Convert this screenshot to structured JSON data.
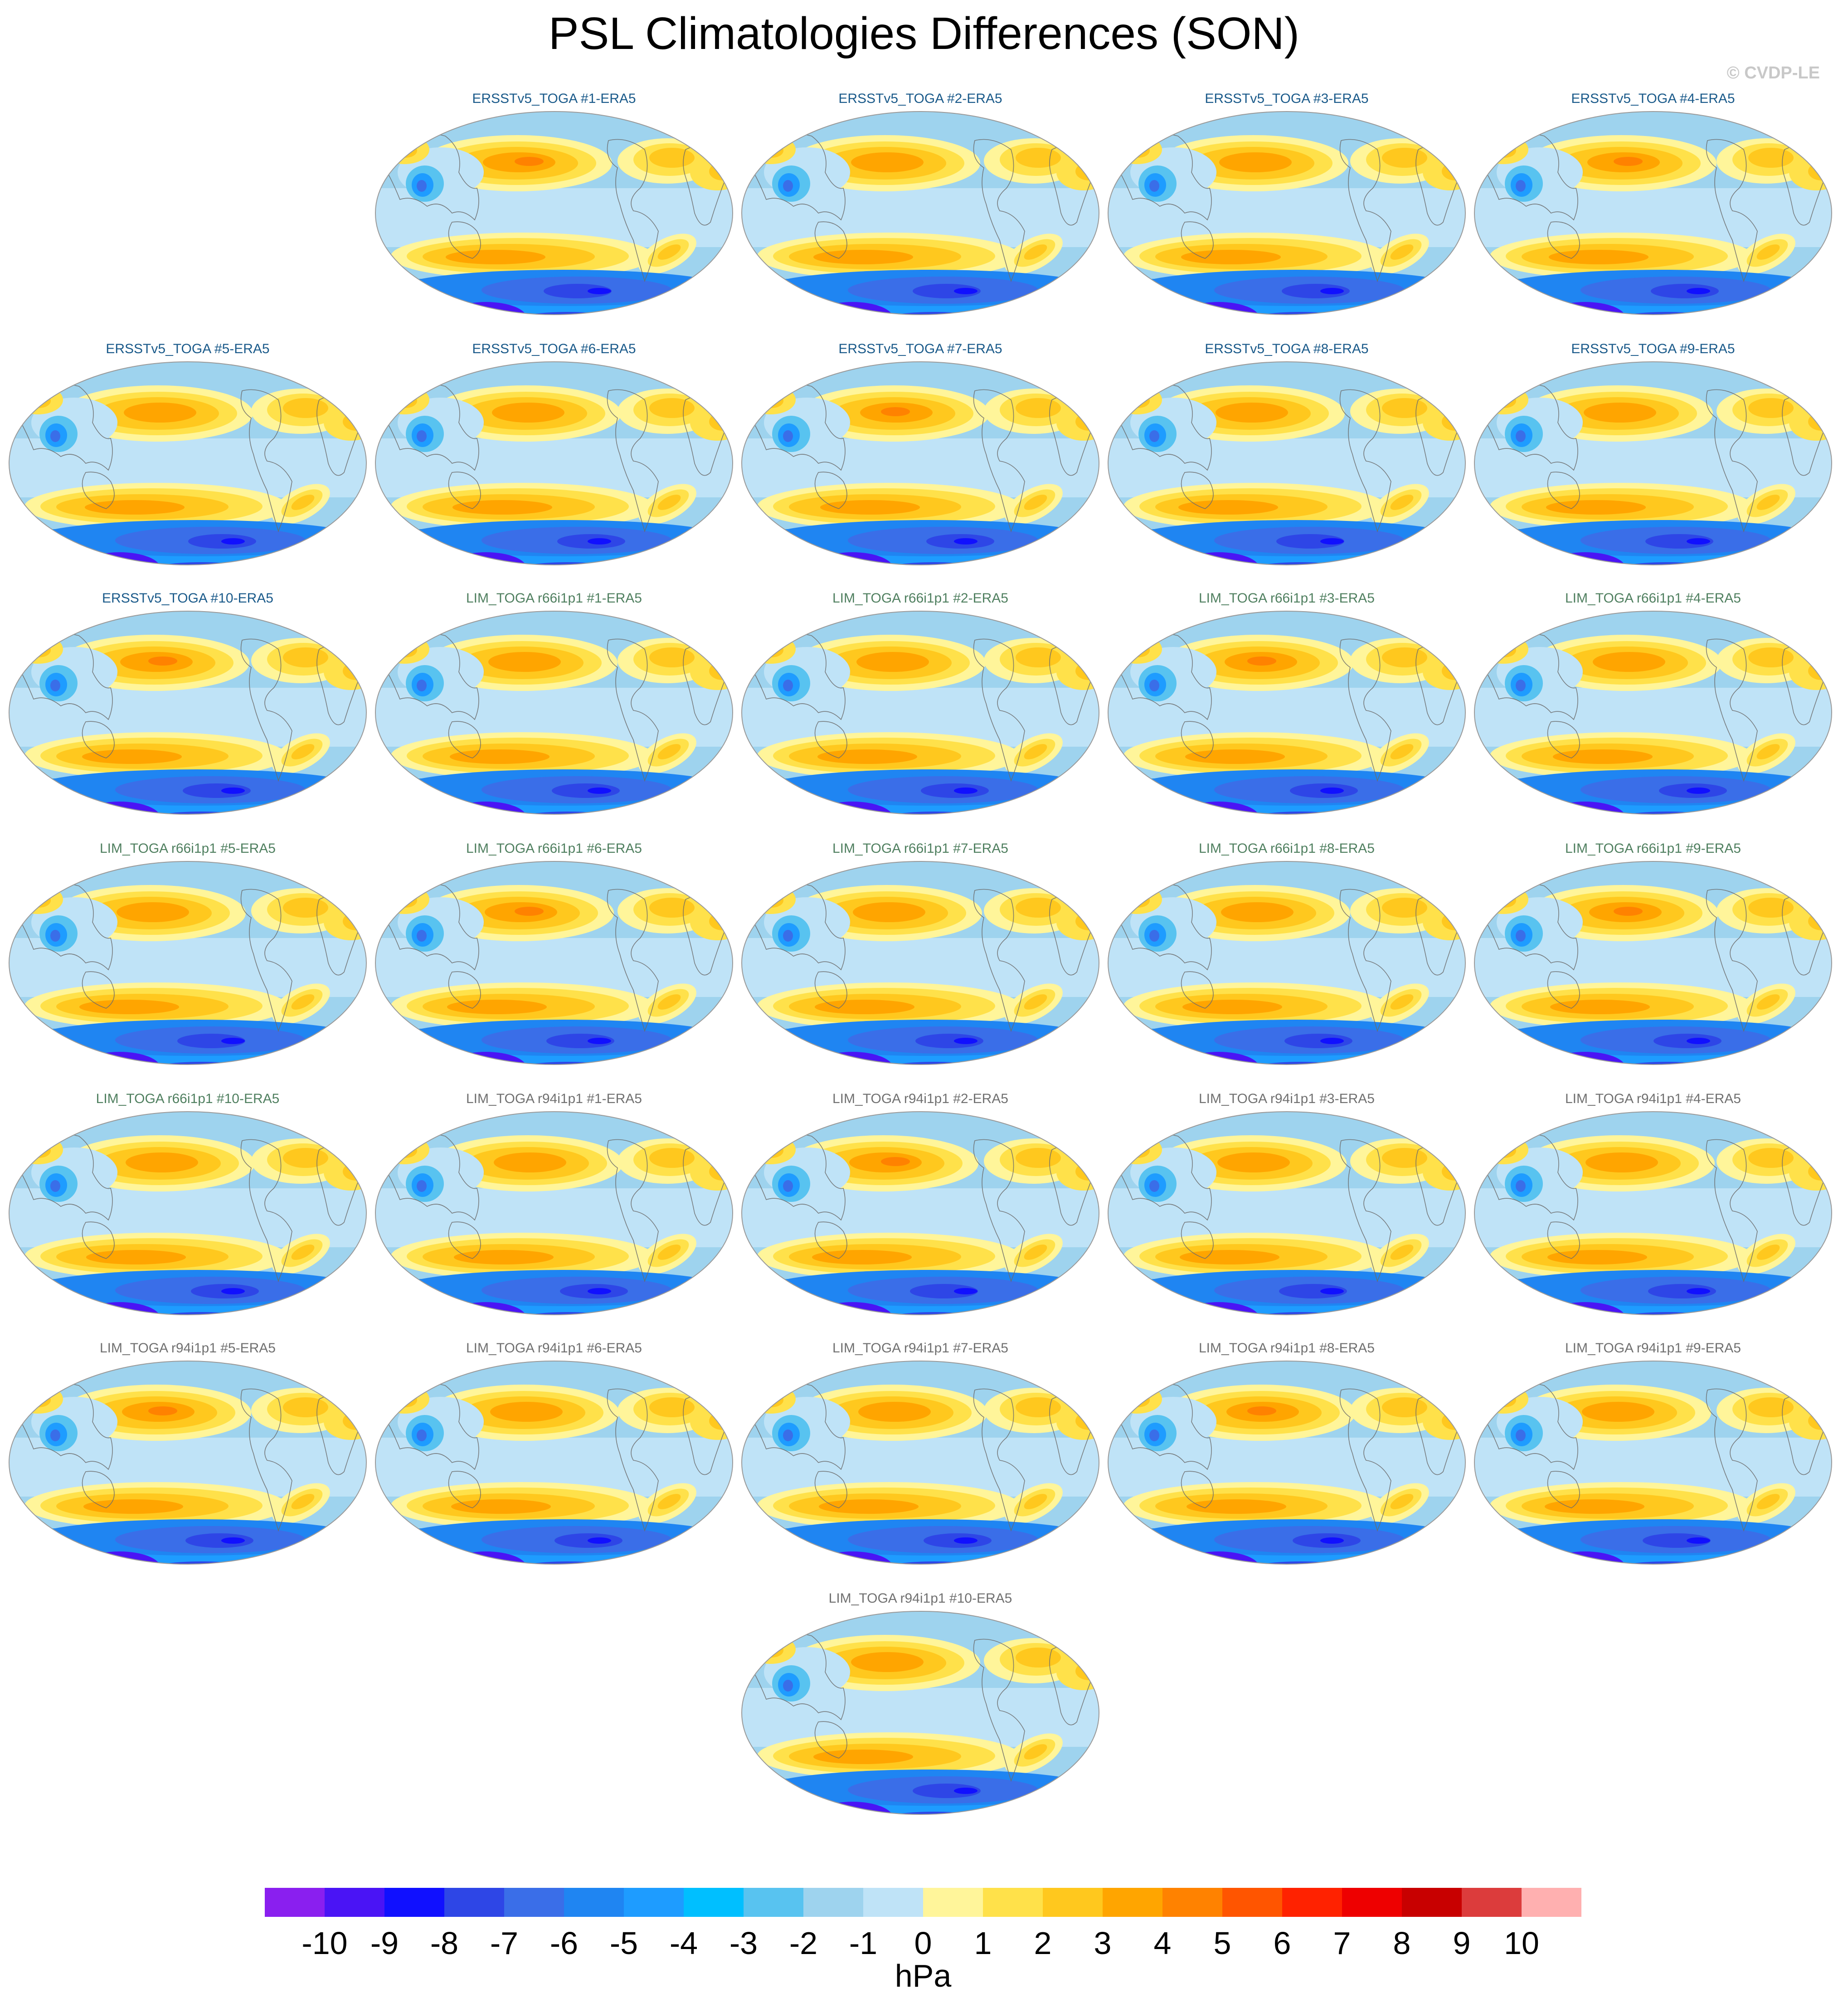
{
  "title": "PSL Climatologies Differences (SON)",
  "watermark": "© CVDP-LE",
  "chart_data": {
    "type": "heatmap",
    "projection": "global map (Robinson-like, Pacific-centred)",
    "variable": "PSL",
    "season": "SON",
    "units": "hPa",
    "colorbar": {
      "label": "hPa",
      "levels": [
        -10,
        -9,
        -8,
        -7,
        -6,
        -5,
        -4,
        -3,
        -2,
        -1,
        0,
        1,
        2,
        3,
        4,
        5,
        6,
        7,
        8,
        9,
        10
      ],
      "colors": [
        "#8a1fef",
        "#4a14f5",
        "#1010ff",
        "#2e46e6",
        "#3a6ee8",
        "#1f85f2",
        "#1e9cff",
        "#00bfff",
        "#58c3f0",
        "#9ed3ee",
        "#bfe3f7",
        "#fff59a",
        "#ffe14a",
        "#ffc81e",
        "#ffa500",
        "#ff8200",
        "#ff5500",
        "#ff2200",
        "#ee0000",
        "#c80000",
        "#dc3c3c",
        "#ffb0b0"
      ],
      "tick_labels": [
        "-10",
        "-9",
        "-8",
        "-7",
        "-6",
        "-5",
        "-4",
        "-3",
        "-2",
        "-1",
        "0",
        "1",
        "2",
        "3",
        "4",
        "5",
        "6",
        "7",
        "8",
        "9",
        "10"
      ]
    },
    "panel_title_colors": {
      "ersst": "#1a5a8a",
      "lim66": "#4f7f5f",
      "lim94": "#707070"
    },
    "panels": [
      {
        "title": "ERSSTv5_TOGA #1-ERA5",
        "group": "ersst"
      },
      {
        "title": "ERSSTv5_TOGA #2-ERA5",
        "group": "ersst"
      },
      {
        "title": "ERSSTv5_TOGA #3-ERA5",
        "group": "ersst"
      },
      {
        "title": "ERSSTv5_TOGA #4-ERA5",
        "group": "ersst"
      },
      {
        "title": "ERSSTv5_TOGA #5-ERA5",
        "group": "ersst"
      },
      {
        "title": "ERSSTv5_TOGA #6-ERA5",
        "group": "ersst"
      },
      {
        "title": "ERSSTv5_TOGA #7-ERA5",
        "group": "ersst"
      },
      {
        "title": "ERSSTv5_TOGA #8-ERA5",
        "group": "ersst"
      },
      {
        "title": "ERSSTv5_TOGA #9-ERA5",
        "group": "ersst"
      },
      {
        "title": "ERSSTv5_TOGA #10-ERA5",
        "group": "ersst"
      },
      {
        "title": "LIM_TOGA r66i1p1 #1-ERA5",
        "group": "lim66"
      },
      {
        "title": "LIM_TOGA r66i1p1 #2-ERA5",
        "group": "lim66"
      },
      {
        "title": "LIM_TOGA r66i1p1 #3-ERA5",
        "group": "lim66"
      },
      {
        "title": "LIM_TOGA r66i1p1 #4-ERA5",
        "group": "lim66"
      },
      {
        "title": "LIM_TOGA r66i1p1 #5-ERA5",
        "group": "lim66"
      },
      {
        "title": "LIM_TOGA r66i1p1 #6-ERA5",
        "group": "lim66"
      },
      {
        "title": "LIM_TOGA r66i1p1 #7-ERA5",
        "group": "lim66"
      },
      {
        "title": "LIM_TOGA r66i1p1 #8-ERA5",
        "group": "lim66"
      },
      {
        "title": "LIM_TOGA r66i1p1 #9-ERA5",
        "group": "lim66"
      },
      {
        "title": "LIM_TOGA r66i1p1 #10-ERA5",
        "group": "lim66"
      },
      {
        "title": "LIM_TOGA r94i1p1 #1-ERA5",
        "group": "lim94"
      },
      {
        "title": "LIM_TOGA r94i1p1 #2-ERA5",
        "group": "lim94"
      },
      {
        "title": "LIM_TOGA r94i1p1 #3-ERA5",
        "group": "lim94"
      },
      {
        "title": "LIM_TOGA r94i1p1 #4-ERA5",
        "group": "lim94"
      },
      {
        "title": "LIM_TOGA r94i1p1 #5-ERA5",
        "group": "lim94"
      },
      {
        "title": "LIM_TOGA r94i1p1 #6-ERA5",
        "group": "lim94"
      },
      {
        "title": "LIM_TOGA r94i1p1 #7-ERA5",
        "group": "lim94"
      },
      {
        "title": "LIM_TOGA r94i1p1 #8-ERA5",
        "group": "lim94"
      },
      {
        "title": "LIM_TOGA r94i1p1 #9-ERA5",
        "group": "lim94"
      },
      {
        "title": "LIM_TOGA r94i1p1 #10-ERA5",
        "group": "lim94"
      }
    ]
  }
}
